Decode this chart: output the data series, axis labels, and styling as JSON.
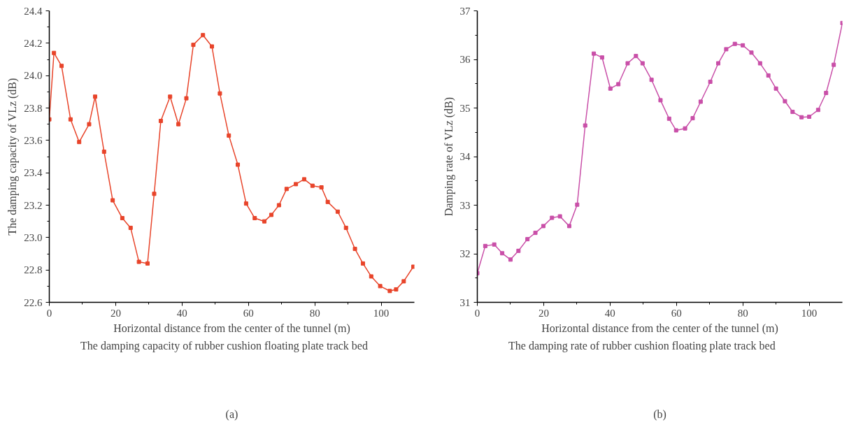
{
  "chart_data": [
    {
      "type": "line",
      "xlabel": "Horizontal distance from the center of the tunnel (m)",
      "ylabel": "The damping capacity of VLz (dB)",
      "annotations": [
        "(a)"
      ],
      "marker": "square",
      "line_style": "solid",
      "grid": false,
      "legend": "bottom",
      "xlim": [
        0,
        110
      ],
      "xticks": [
        0,
        20,
        40,
        60,
        80,
        100
      ],
      "ylim": [
        22.6,
        24.4
      ],
      "yticks": [
        22.6,
        22.8,
        {
          "value": 23,
          "label": "23.0"
        },
        23.2,
        23.4,
        23.6,
        23.8,
        {
          "value": 24,
          "label": "24.0"
        },
        24.2,
        24.4
      ],
      "x": [
        0,
        1.4,
        3.7,
        6.4,
        9,
        12,
        13.8,
        16.5,
        19.1,
        22,
        24.5,
        27,
        29.6,
        31.6,
        33.6,
        36.4,
        38.9,
        41.3,
        43.4,
        46.3,
        49,
        51.4,
        54.1,
        56.8,
        59.3,
        61.9,
        64.8,
        66.9,
        69.2,
        71.5,
        74.3,
        76.8,
        79.3,
        82,
        83.9,
        86.9,
        89.4,
        92.1,
        94.5,
        97,
        99.7,
        102.6,
        104.5,
        106.8,
        109.7
      ],
      "series": [
        {
          "name": "The damping capacity of rubber cushion floating plate track bed",
          "color": "#e8442a",
          "values": [
            23.73,
            24.14,
            24.06,
            23.73,
            23.59,
            23.7,
            23.87,
            23.53,
            23.23,
            23.12,
            23.06,
            22.85,
            22.84,
            23.27,
            23.72,
            23.87,
            23.7,
            23.86,
            24.19,
            24.25,
            24.18,
            23.89,
            23.63,
            23.45,
            23.21,
            23.12,
            23.1,
            23.14,
            23.2,
            23.3,
            23.33,
            23.36,
            23.32,
            23.31,
            23.22,
            23.16,
            23.06,
            22.93,
            22.84,
            22.76,
            22.7,
            22.67,
            22.68,
            22.73,
            22.82
          ]
        }
      ]
    },
    {
      "type": "line",
      "xlabel": "Horizontal distance from the center of the tunnel (m)",
      "ylabel": "Damping rate of VLz (dB)",
      "annotations": [
        "(b)"
      ],
      "marker": "square",
      "line_style": "solid",
      "grid": false,
      "legend": "bottom",
      "xlim": [
        0,
        110
      ],
      "xticks": [
        0,
        20,
        40,
        60,
        80,
        100
      ],
      "ylim": [
        31,
        37
      ],
      "yticks": [
        31,
        32,
        33,
        34,
        35,
        36,
        37
      ],
      "x": [
        0,
        2.4,
        5.1,
        7.5,
        10,
        12.4,
        15.1,
        17.5,
        19.9,
        22.5,
        24.9,
        27.7,
        30.1,
        32.5,
        35.1,
        37.6,
        40.1,
        42.5,
        45.3,
        47.8,
        49.8,
        52.5,
        55.2,
        57.8,
        59.9,
        62.6,
        64.9,
        67.3,
        70.2,
        72.6,
        75,
        77.6,
        80,
        82.6,
        85.2,
        87.7,
        90,
        92.7,
        95,
        97.7,
        100,
        102.7,
        105.1,
        107.4,
        110
      ],
      "series": [
        {
          "name": "The damping rate of rubber cushion floating plate track bed",
          "color": "#c94fa8",
          "values": [
            31.6,
            32.16,
            32.19,
            32.01,
            31.88,
            32.06,
            32.3,
            32.43,
            32.57,
            32.74,
            32.77,
            32.57,
            33.01,
            34.64,
            36.12,
            36.04,
            35.4,
            35.49,
            35.92,
            36.07,
            35.92,
            35.58,
            35.16,
            34.78,
            34.54,
            34.58,
            34.79,
            35.13,
            35.54,
            35.92,
            36.21,
            36.32,
            36.29,
            36.14,
            35.92,
            35.67,
            35.4,
            35.14,
            34.92,
            34.81,
            34.82,
            34.96,
            35.31,
            35.89,
            36.75
          ]
        }
      ]
    }
  ]
}
